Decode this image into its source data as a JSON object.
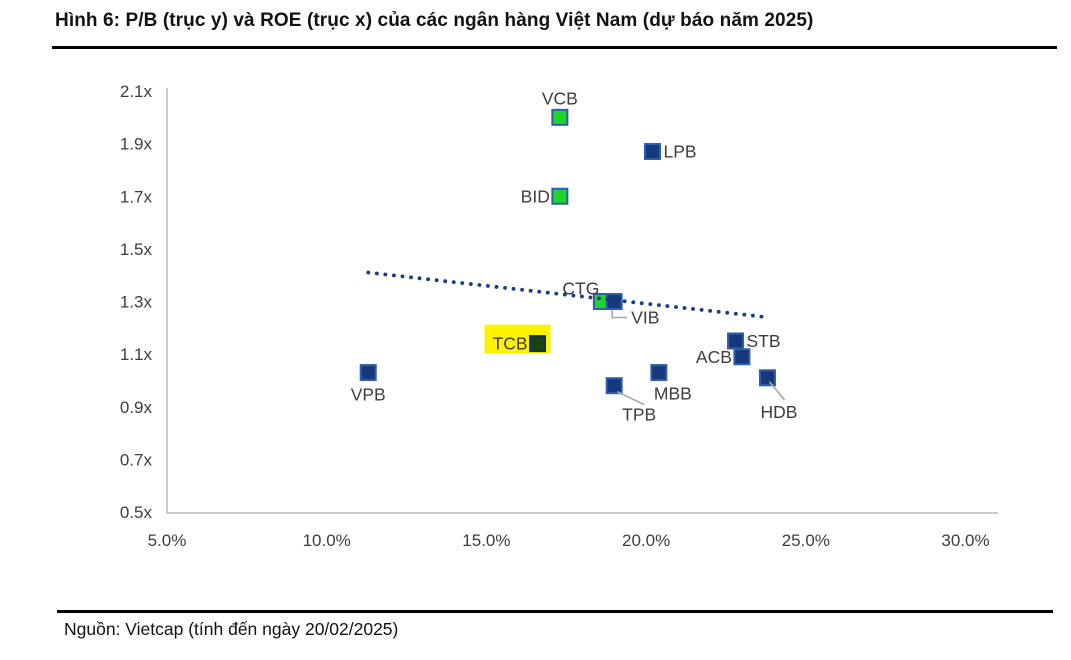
{
  "title": "Hình 6: P/B (trục y) và ROE (trục x) của các ngân hàng Việt Nam (dự báo năm 2025)",
  "source": "Nguồn: Vietcap (tính đến ngày 20/02/2025)",
  "colors": {
    "navy_fill": "#17387E",
    "navy_border": "#2E5FA8",
    "green_fill": "#1FD42B",
    "green_border": "#2E5FA8",
    "darkgreen_fill": "#17430F",
    "darkgreen_border": "#133058",
    "highlight_yellow": "#FFF100",
    "trend_dot": "#1C3D85",
    "axis_line": "#C9C9C9",
    "leader_line": "#A8A8A8",
    "label_text": "#3D3D3D"
  },
  "chart_data": {
    "type": "scatter",
    "xlabel": "ROE",
    "ylabel": "P/B",
    "xlim": [
      5,
      31
    ],
    "ylim": [
      0.5,
      2.1
    ],
    "grid": false,
    "x_tick_labels": [
      "5.0%",
      "10.0%",
      "15.0%",
      "20.0%",
      "25.0%",
      "30.0%"
    ],
    "x_tick_values": [
      5,
      10,
      15,
      20,
      25,
      30
    ],
    "y_tick_labels": [
      "0.5x",
      "0.7x",
      "0.9x",
      "1.1x",
      "1.3x",
      "1.5x",
      "1.7x",
      "1.9x",
      "2.1x"
    ],
    "y_tick_values": [
      0.5,
      0.7,
      0.9,
      1.1,
      1.3,
      1.5,
      1.7,
      1.9,
      2.1
    ],
    "points": [
      {
        "label": "VCB",
        "roe_pct": 17.3,
        "pb_x": 2.0,
        "marker": "green",
        "label_pos": "above"
      },
      {
        "label": "LPB",
        "roe_pct": 20.2,
        "pb_x": 1.87,
        "marker": "navy",
        "label_pos": "right"
      },
      {
        "label": "BID",
        "roe_pct": 17.3,
        "pb_x": 1.7,
        "marker": "green",
        "label_pos": "left"
      },
      {
        "label": "CTG",
        "roe_pct": 18.6,
        "pb_x": 1.3,
        "marker": "green",
        "label_pos": "above-left"
      },
      {
        "label": "VIB",
        "roe_pct": 19.0,
        "pb_x": 1.3,
        "marker": "navy",
        "label_pos": "leader-right"
      },
      {
        "label": "TCB",
        "roe_pct": 16.6,
        "pb_x": 1.14,
        "marker": "darkgreen",
        "label_pos": "left",
        "highlight": true
      },
      {
        "label": "STB",
        "roe_pct": 22.8,
        "pb_x": 1.15,
        "marker": "navy",
        "label_pos": "right"
      },
      {
        "label": "ACB",
        "roe_pct": 23.0,
        "pb_x": 1.09,
        "marker": "navy",
        "label_pos": "left"
      },
      {
        "label": "VPB",
        "roe_pct": 11.3,
        "pb_x": 1.03,
        "marker": "navy",
        "label_pos": "below"
      },
      {
        "label": "MBB",
        "roe_pct": 20.4,
        "pb_x": 1.03,
        "marker": "navy",
        "label_pos": "below-right"
      },
      {
        "label": "TPB",
        "roe_pct": 19.0,
        "pb_x": 0.98,
        "marker": "navy",
        "label_pos": "leader-below-right"
      },
      {
        "label": "HDB",
        "roe_pct": 23.8,
        "pb_x": 1.01,
        "marker": "navy",
        "label_pos": "leader-below"
      }
    ],
    "trendline": {
      "style": "dotted",
      "x1": 11.3,
      "y1": 1.41,
      "x2": 23.8,
      "y2": 1.24
    },
    "legend_position": "none"
  }
}
